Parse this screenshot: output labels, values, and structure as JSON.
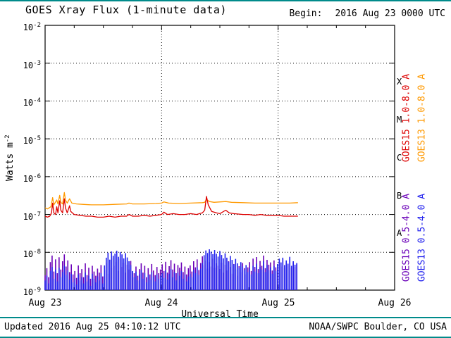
{
  "header": {
    "title": "GOES Xray Flux (1-minute data)",
    "begin_label": "Begin:",
    "begin_value": "2016 Aug 23 0000 UTC"
  },
  "footer": {
    "updated": "Updated 2016 Aug 25 04:10:12 UTC",
    "source": "NOAA/SWPC Boulder, CO USA"
  },
  "colors": {
    "red": "#dd0000",
    "orange": "#ff9900",
    "purple": "#6a00b8",
    "blue": "#2222ee",
    "teal": "#008b8b",
    "axis": "#000000"
  },
  "chart_data": {
    "type": "line",
    "title": "GOES Xray Flux (1-minute data)",
    "xlabel": "Universal Time",
    "ylabel_base": "Watts m",
    "ylabel_exp": "-2",
    "x_range_days": [
      0,
      3
    ],
    "x_tick_labels": [
      "Aug 23",
      "Aug 24",
      "Aug 25",
      "Aug 26"
    ],
    "y_log_range": [
      -9,
      -2
    ],
    "y_base": "10",
    "y_exponents": [
      "-2",
      "-3",
      "-4",
      "-5",
      "-6",
      "-7",
      "-8",
      "-9"
    ],
    "class_letters": [
      "X",
      "M",
      "C",
      "B",
      "A"
    ],
    "legend": [
      {
        "label": "GOES15 1.0-8.0 A",
        "color_key": "red"
      },
      {
        "label": "GOES13 1.0-8.0 A",
        "color_key": "orange"
      },
      {
        "label": "GOES15 0.5-4.0 A",
        "color_key": "purple"
      },
      {
        "label": "GOES13 0.5-4.0 A",
        "color_key": "blue"
      }
    ],
    "series": [
      {
        "name": "GOES15 1.0-8.0 A",
        "style": "line",
        "color_key": "red",
        "t_days": [
          0.0,
          0.02,
          0.04,
          0.055,
          0.065,
          0.075,
          0.09,
          0.1,
          0.11,
          0.125,
          0.135,
          0.15,
          0.165,
          0.175,
          0.19,
          0.21,
          0.22,
          0.25,
          0.3,
          0.35,
          0.4,
          0.45,
          0.5,
          0.55,
          0.6,
          0.65,
          0.7,
          0.72,
          0.75,
          0.8,
          0.85,
          0.9,
          0.95,
          1.0,
          1.02,
          1.05,
          1.1,
          1.15,
          1.2,
          1.25,
          1.3,
          1.35,
          1.37,
          1.385,
          1.4,
          1.43,
          1.47,
          1.5,
          1.55,
          1.58,
          1.62,
          1.7,
          1.75,
          1.8,
          1.85,
          1.9,
          1.95,
          2.0,
          2.05,
          2.1,
          2.17
        ],
        "flux": [
          9e-08,
          8.5e-08,
          9e-08,
          1.1e-07,
          2e-07,
          1.1e-07,
          1e-07,
          1.6e-07,
          1.1e-07,
          2.3e-07,
          1.3e-07,
          1.1e-07,
          2.6e-07,
          1.5e-07,
          1.1e-07,
          1.7e-07,
          1.2e-07,
          1e-07,
          9.5e-08,
          9e-08,
          9e-08,
          8.5e-08,
          8.5e-08,
          9e-08,
          8.5e-08,
          9e-08,
          9e-08,
          1e-07,
          9e-08,
          9e-08,
          9.5e-08,
          9e-08,
          9.5e-08,
          1e-07,
          1.15e-07,
          1e-07,
          1.05e-07,
          1e-07,
          1e-07,
          1.05e-07,
          1e-07,
          1.1e-07,
          1.3e-07,
          3e-07,
          1.8e-07,
          1.2e-07,
          1.1e-07,
          1.05e-07,
          1.3e-07,
          1.1e-07,
          1.05e-07,
          1e-07,
          1e-07,
          9.5e-08,
          1e-07,
          9.5e-08,
          9.5e-08,
          9.5e-08,
          9e-08,
          9e-08,
          9e-08
        ]
      },
      {
        "name": "GOES13 1.0-8.0 A",
        "style": "line",
        "color_key": "orange",
        "t_days": [
          0.0,
          0.02,
          0.05,
          0.065,
          0.075,
          0.1,
          0.11,
          0.125,
          0.135,
          0.15,
          0.165,
          0.175,
          0.19,
          0.21,
          0.23,
          0.27,
          0.32,
          0.4,
          0.5,
          0.6,
          0.7,
          0.72,
          0.75,
          0.85,
          0.95,
          1.0,
          1.02,
          1.06,
          1.15,
          1.25,
          1.35,
          1.37,
          1.385,
          1.41,
          1.45,
          1.55,
          1.6,
          1.7,
          1.8,
          1.9,
          2.0,
          2.1,
          2.17
        ],
        "flux": [
          1.5e-07,
          1.4e-07,
          1.6e-07,
          2.8e-07,
          1.8e-07,
          2.4e-07,
          1.9e-07,
          3.2e-07,
          2.1e-07,
          1.9e-07,
          3.8e-07,
          2.4e-07,
          2e-07,
          2.6e-07,
          2e-07,
          1.9e-07,
          1.85e-07,
          1.8e-07,
          1.8e-07,
          1.85e-07,
          1.9e-07,
          2e-07,
          1.9e-07,
          1.9e-07,
          1.95e-07,
          2e-07,
          2.15e-07,
          2e-07,
          1.95e-07,
          2e-07,
          2.05e-07,
          2.1e-07,
          2.5e-07,
          2.2e-07,
          2.1e-07,
          2.2e-07,
          2.1e-07,
          2.05e-07,
          2e-07,
          2e-07,
          2e-07,
          2e-07,
          2.05e-07
        ]
      },
      {
        "name": "GOES15 0.5-4.0 A",
        "style": "noise",
        "color_key": "purple",
        "t0_days": 0,
        "dt_days": 0.015,
        "scale": 1e-09,
        "values": [
          2.5,
          3.8,
          2.2,
          5.5,
          8.2,
          3.1,
          6.5,
          2.8,
          7.4,
          3.5,
          5.8,
          8.8,
          4.2,
          6.1,
          3.0,
          4.8,
          2.6,
          3.2,
          2.1,
          4.5,
          2.8,
          3.6,
          2.2,
          5.1,
          2.5,
          3.9,
          2.0,
          4.4,
          3.1,
          2.4,
          3.7,
          2.9,
          4.6,
          2.3,
          3.4,
          5.2,
          2.7,
          6.3,
          3.8,
          7.1,
          4.4,
          5.6,
          3.2,
          6.8,
          4.1,
          5.3,
          2.9,
          4.7,
          3.5,
          5.9,
          3.1,
          2.8,
          4.2,
          2.4,
          3.6,
          5.1,
          2.9,
          4.4,
          2.2,
          3.8,
          2.6,
          4.9,
          3.3,
          2.5,
          4.1,
          2.8,
          3.5,
          4.8,
          3.2,
          5.6,
          2.9,
          4.3,
          6.2,
          3.5,
          5.0,
          2.8,
          4.6,
          3.9,
          5.4,
          3.0,
          4.2,
          2.6,
          3.8,
          4.5,
          3.1,
          5.8,
          4.0,
          6.5,
          3.4,
          5.2,
          7.8,
          4.6,
          6.0,
          3.7,
          5.5,
          4.2,
          6.8,
          3.9,
          5.1,
          4.4,
          3.6,
          5.3,
          2.9,
          4.7,
          3.3,
          5.8,
          4.1,
          2.7,
          4.9,
          3.5,
          2.4,
          4.3,
          3.0,
          5.2,
          3.8,
          2.6,
          4.0,
          5.5,
          3.2,
          6.8,
          4.1,
          7.5,
          3.6,
          5.9,
          4.4,
          8.2,
          3.8,
          6.3,
          4.7,
          5.4,
          3.3,
          6.1,
          4.0,
          3.5,
          5.7,
          4.2,
          6.6,
          3.8,
          5.1,
          4.5,
          7.0,
          3.9,
          5.4,
          4.1,
          4.8
        ]
      },
      {
        "name": "GOES13 0.5-4.0 A",
        "style": "noise",
        "color_key": "blue",
        "t0_days": 0,
        "dt_days": 0.015,
        "scale": 1e-09,
        "values": [
          1.8,
          2.4,
          1.5,
          3.2,
          4.1,
          2.0,
          3.5,
          1.7,
          3.9,
          2.2,
          3.0,
          4.4,
          2.5,
          3.3,
          1.9,
          2.7,
          1.6,
          2.0,
          1.4,
          2.6,
          1.8,
          2.2,
          1.5,
          2.9,
          1.7,
          2.4,
          1.3,
          2.7,
          2.0,
          1.6,
          2.3,
          1.8,
          2.8,
          1.5,
          4.5,
          7.2,
          9.8,
          6.4,
          10.5,
          8.1,
          9.2,
          11.0,
          7.6,
          10.2,
          8.8,
          6.9,
          9.5,
          7.3,
          5.8,
          4.6,
          3.2,
          2.2,
          3.1,
          1.8,
          2.6,
          3.4,
          2.0,
          2.8,
          1.6,
          2.5,
          1.9,
          3.0,
          2.3,
          1.7,
          2.6,
          2.0,
          2.4,
          2.8,
          2.1,
          3.3,
          1.9,
          2.7,
          3.6,
          2.2,
          3.0,
          1.8,
          2.9,
          2.4,
          3.2,
          2.0,
          2.6,
          1.7,
          2.3,
          2.7,
          2.2,
          3.4,
          2.8,
          4.0,
          2.5,
          3.7,
          5.2,
          8.4,
          11.2,
          9.6,
          12.0,
          10.4,
          8.9,
          11.5,
          9.1,
          7.7,
          10.8,
          8.5,
          6.9,
          9.4,
          7.2,
          5.6,
          8.0,
          6.3,
          4.8,
          6.7,
          5.1,
          3.9,
          5.5,
          4.2,
          3.4,
          4.6,
          3.0,
          3.8,
          2.6,
          4.4,
          3.1,
          5.0,
          2.8,
          4.1,
          3.5,
          5.8,
          3.0,
          4.6,
          3.4,
          4.0,
          2.7,
          4.3,
          3.2,
          4.9,
          6.8,
          5.4,
          7.2,
          4.6,
          6.1,
          5.0,
          7.6,
          4.4,
          5.8,
          4.7,
          5.2
        ]
      }
    ]
  }
}
